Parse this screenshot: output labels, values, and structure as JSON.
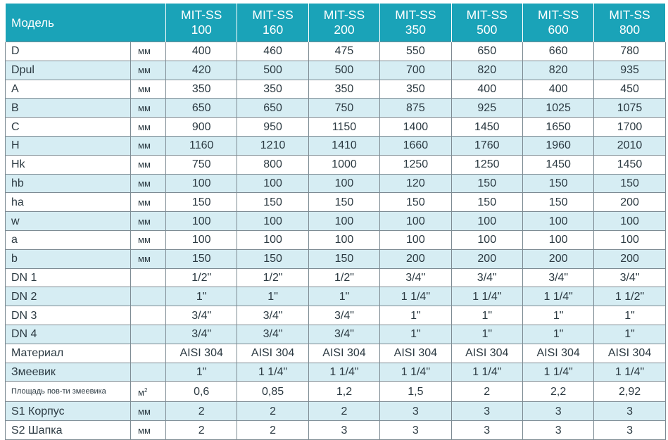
{
  "header": {
    "label": "Модель",
    "models": [
      {
        "line1": "MIT-SS",
        "line2": "100"
      },
      {
        "line1": "MIT-SS",
        "line2": "160"
      },
      {
        "line1": "MIT-SS",
        "line2": "200"
      },
      {
        "line1": "MIT-SS",
        "line2": "350"
      },
      {
        "line1": "MIT-SS",
        "line2": "500"
      },
      {
        "line1": "MIT-SS",
        "line2": "600"
      },
      {
        "line1": "MIT-SS",
        "line2": "800"
      }
    ]
  },
  "rows": [
    {
      "param": "D",
      "unit": "мм",
      "values": [
        "400",
        "460",
        "475",
        "550",
        "650",
        "660",
        "780"
      ]
    },
    {
      "param": "Dpul",
      "unit": "мм",
      "values": [
        "420",
        "500",
        "500",
        "700",
        "820",
        "820",
        "935"
      ]
    },
    {
      "param": "A",
      "unit": "мм",
      "values": [
        "350",
        "350",
        "350",
        "350",
        "400",
        "400",
        "450"
      ]
    },
    {
      "param": "B",
      "unit": "мм",
      "values": [
        "650",
        "650",
        "750",
        "875",
        "925",
        "1025",
        "1075"
      ]
    },
    {
      "param": "C",
      "unit": "мм",
      "values": [
        "900",
        "950",
        "1150",
        "1400",
        "1450",
        "1650",
        "1700"
      ]
    },
    {
      "param": "H",
      "unit": "мм",
      "values": [
        "1160",
        "1210",
        "1410",
        "1660",
        "1760",
        "1960",
        "2010"
      ]
    },
    {
      "param": "Hk",
      "unit": "мм",
      "values": [
        "750",
        "800",
        "1000",
        "1250",
        "1250",
        "1450",
        "1450"
      ]
    },
    {
      "param": "hb",
      "unit": "мм",
      "values": [
        "100",
        "100",
        "100",
        "120",
        "150",
        "150",
        "150"
      ]
    },
    {
      "param": "ha",
      "unit": "мм",
      "values": [
        "150",
        "150",
        "150",
        "150",
        "150",
        "150",
        "200"
      ]
    },
    {
      "param": "w",
      "unit": "мм",
      "values": [
        "100",
        "100",
        "100",
        "100",
        "100",
        "100",
        "100"
      ]
    },
    {
      "param": "a",
      "unit": "мм",
      "values": [
        "100",
        "100",
        "100",
        "100",
        "100",
        "100",
        "100"
      ]
    },
    {
      "param": "b",
      "unit": "мм",
      "values": [
        "150",
        "150",
        "150",
        "200",
        "200",
        "200",
        "200"
      ]
    },
    {
      "param": "DN 1",
      "unit": "",
      "values": [
        "1/2\"",
        "1/2\"",
        "1/2\"",
        "3/4''",
        "3/4\"",
        "3/4\"",
        "3/4\""
      ]
    },
    {
      "param": "DN 2",
      "unit": "",
      "values": [
        "1\"",
        "1\"",
        "1\"",
        "1 1/4\"",
        "1 1/4\"",
        "1 1/4\"",
        "1 1/2\""
      ]
    },
    {
      "param": "DN 3",
      "unit": "",
      "values": [
        "3/4\"",
        "3/4\"",
        "3/4\"",
        "1\"",
        "1\"",
        "1\"",
        "1\""
      ]
    },
    {
      "param": "DN 4",
      "unit": "",
      "values": [
        "3/4\"",
        "3/4\"",
        "3/4\"",
        "1\"",
        "1\"",
        "1\"",
        "1\""
      ]
    },
    {
      "param": "Материал",
      "unit": "",
      "values": [
        "AISI 304",
        "AISI 304",
        "AISI 304",
        "AISI 304",
        "AISI 304",
        "AISI 304",
        "AISI 304"
      ]
    },
    {
      "param": "Змеевик",
      "unit": "",
      "values": [
        "1\"",
        "1 1/4\"",
        "1 1/4\"",
        "1 1/4\"",
        "1 1/4\"",
        "1 1/4\"",
        "1 1/4\""
      ]
    },
    {
      "param": "Площадь пов-ти змеевика",
      "unit": "м",
      "unit_sup": "2",
      "values": [
        "0,6",
        "0,85",
        "1,2",
        "1,5",
        "2",
        "2,2",
        "2,92"
      ]
    },
    {
      "param": "S1  Корпус",
      "unit": "мм",
      "values": [
        "2",
        "2",
        "2",
        "3",
        "3",
        "3",
        "3"
      ]
    },
    {
      "param": "S2 Шапка",
      "unit": "мм",
      "values": [
        "2",
        "2",
        "3",
        "3",
        "3",
        "3",
        "3"
      ]
    }
  ],
  "colors": {
    "header_bg": "#1aa3b8",
    "stripe_bg": "#d6edf3",
    "border": "#7d8b93"
  }
}
